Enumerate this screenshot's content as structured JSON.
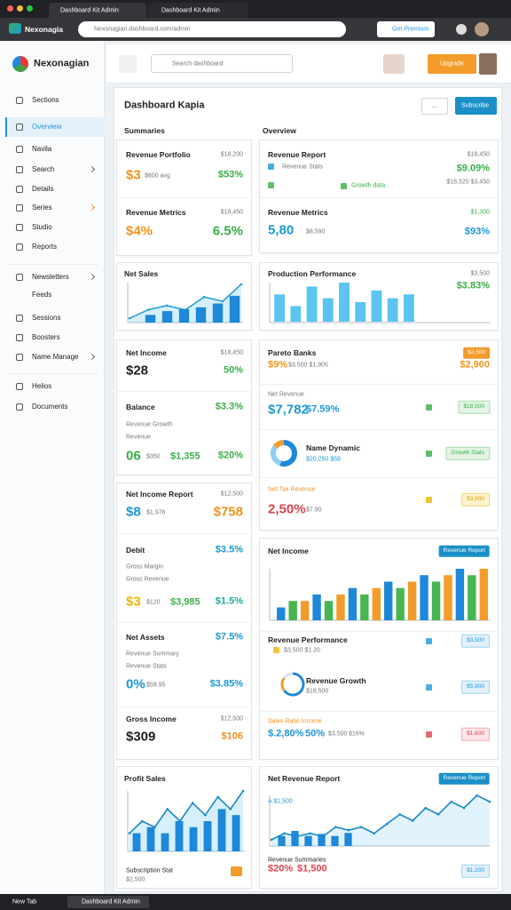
{
  "browser": {
    "tabs": [
      "Dashboard Kit Admin",
      "Dashboard Kit Admin"
    ],
    "brand": "Nexonagia",
    "url": "Nexonagian.dashboard.com/admin",
    "extension": "Get Premium",
    "taskbar": [
      "New Tab",
      "Dashboard Kit Admin"
    ]
  },
  "header": {
    "logo": "Nexonagian",
    "search": "Search dashboard",
    "button": "Upgrade"
  },
  "sidebar": [
    "Sections",
    "Overview",
    "Navila",
    "Search",
    "Details",
    "Series",
    "Studio",
    "Reports",
    "Newsletters",
    "Feeds",
    "Sessions",
    "Boosters",
    "Name Manage",
    "Helios",
    "Documents"
  ],
  "page": {
    "title": "Dashboard Kapia",
    "more": "...",
    "button": "Subscribe",
    "left_heading": "Summaries",
    "right_heading": "Overview"
  },
  "cards": {
    "l1": [
      "Revenue Portfolio",
      "$18,200",
      "$3",
      "$800 avg",
      "$53%",
      "Revenue Metrics",
      "$18,450",
      "$4%",
      "6.5%"
    ],
    "l2": [
      "Net Sales"
    ],
    "l3": [
      "Net Income",
      "$18,450",
      "$28",
      "50%",
      "Balance",
      "$3.3%",
      "Revenue Growth",
      "Revenue",
      "06",
      "$350",
      "$1,355",
      "$20%"
    ],
    "l4": [
      "Net Income Report",
      "$12,500",
      "$8",
      "$1,976",
      "$758",
      "Debit",
      "$3.5%",
      "Gross Margin",
      "Gross Revenue",
      "$3",
      "$120",
      "$3,985",
      "$1.5%",
      "Net Assets",
      "$7.5%",
      "Revenue Summary",
      "Revenue Stats",
      "0%",
      "$59.95",
      "$3.85%",
      "Gross Income",
      "$12,500",
      "$309",
      "$106"
    ],
    "l5": [
      "Profit Sales",
      "Subscription Stat",
      "$2,500"
    ],
    "r1": [
      "Revenue Report",
      "$18,450",
      "Revenue Stats",
      "$9.09%",
      "$18,520 $3,450",
      "Growth data",
      "Revenue Metrics",
      "$1,300",
      "5,80",
      "$8,590",
      "$93%"
    ],
    "r2": [
      "Production Performance",
      "$3,500",
      "$3.83%"
    ],
    "r3": [
      "Pareto Banks",
      "$2,500",
      "$9%",
      "$3,500 $1,905",
      "$2,900",
      "Net Revenue",
      "$7,782",
      "$7.59%",
      "$18,500",
      "Name Dynamic",
      "$20,250 $59",
      "Growth Stats",
      "Net Tax Revenue",
      "2,50%",
      "$7.90",
      "$3,900"
    ],
    "r4": [
      "Net Income",
      "Revenue Report",
      "Revenue Performance",
      "$3,500",
      "$3,500 $1.20",
      "Revenue Growth",
      "$18,500",
      "$5,900",
      "Sales Ratio Income",
      "$.2,80%",
      "50%",
      "$3,500",
      "$16%",
      "$1,600"
    ],
    "r5": [
      "Net Revenue Report",
      "Revenue Report",
      "A $1,500",
      "Revenue Summaries",
      "$20%",
      "$1,500",
      "$1,200"
    ]
  },
  "charts": {
    "net_sales": {
      "bars": [
        2,
        3,
        3.5,
        4,
        5,
        7
      ],
      "line": [
        1,
        3,
        4,
        3,
        6,
        5,
        9
      ]
    },
    "production": {
      "bars": [
        7,
        4,
        9,
        6,
        10,
        5,
        8,
        6,
        7
      ]
    },
    "net_income": {
      "bars": [
        2,
        3,
        3,
        4,
        3,
        4,
        5,
        4,
        5,
        6,
        5,
        6,
        7,
        6,
        7,
        8,
        7,
        8
      ]
    },
    "profit_sales": {
      "bars": [
        3,
        4,
        3,
        5,
        4,
        5,
        7,
        6
      ],
      "line": [
        3,
        5,
        4,
        7,
        5,
        8,
        6,
        9,
        7,
        10
      ]
    },
    "net_revenue": {
      "line": [
        1,
        2,
        1.5,
        2,
        1.5,
        3,
        2.5,
        3,
        2,
        3.5,
        5,
        4,
        6,
        5,
        7,
        6,
        8,
        7
      ],
      "bars": [
        1,
        1.5,
        1,
        1.2,
        1,
        1.3
      ]
    },
    "name_dynamic": {
      "segments": [
        55,
        30,
        15
      ]
    },
    "revenue_growth": {
      "segments": [
        65,
        20,
        15
      ]
    }
  }
}
